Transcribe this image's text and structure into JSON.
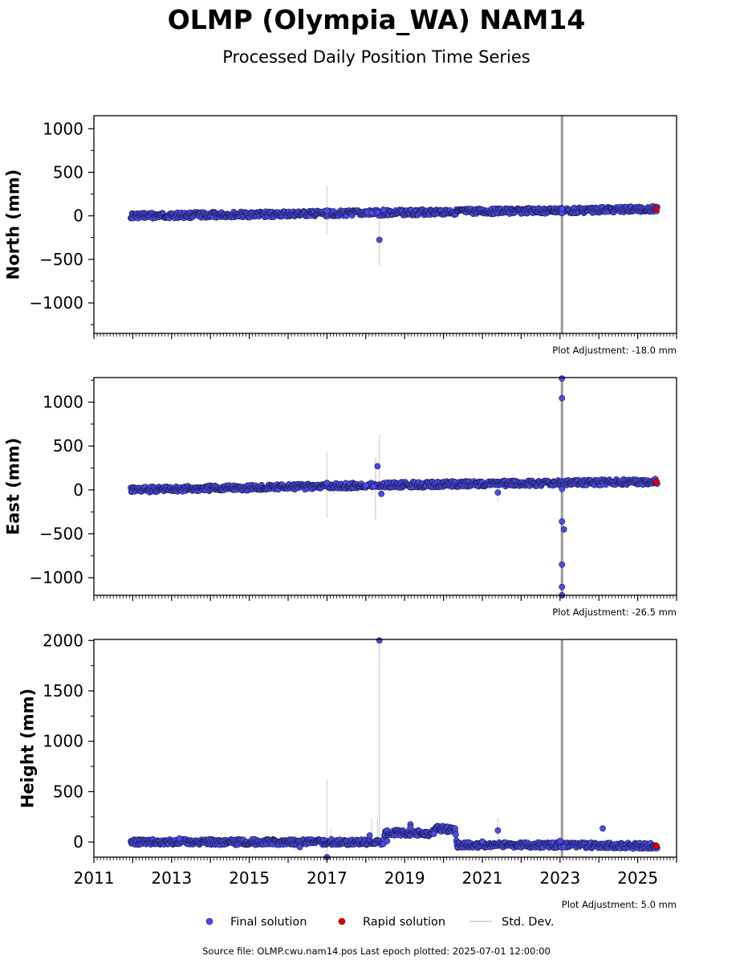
{
  "title": "OLMP (Olympia_WA) NAM14",
  "subtitle": "Processed Daily Position Time Series",
  "source_note": "Source file: OLMP.cwu.nam14.pos  Last epoch plotted: 2025-07-01 12:00:00",
  "legend": [
    {
      "label": "Final solution",
      "color": "#4b4bea",
      "kind": "marker"
    },
    {
      "label": "Rapid solution",
      "color": "#e00000",
      "kind": "marker"
    },
    {
      "label": "Std. Dev.",
      "color": "#d9d9d9",
      "kind": "line"
    }
  ],
  "colors": {
    "final": "#4b4bea",
    "rapid": "#e00000",
    "stddev": "#d9d9d9",
    "event_line": "#888888",
    "marker_edge": "#1a1a4a"
  },
  "chart_data": [
    {
      "type": "scatter",
      "ylabel": "North (mm)",
      "adjustment": "Plot Adjustment: -18.0 mm",
      "xlim": [
        2011.0,
        2026.0
      ],
      "ylim": [
        -1350,
        1150
      ],
      "yticks": [
        -1000,
        -500,
        0,
        500,
        1000
      ],
      "yticklabels": [
        "−1000",
        "−500",
        "0",
        "500",
        "1000"
      ],
      "event_x": 2023.05,
      "trend": [
        [
          2011.95,
          0
        ],
        [
          2016.0,
          20
        ],
        [
          2020.0,
          45
        ],
        [
          2023.0,
          60
        ],
        [
          2025.5,
          80
        ]
      ],
      "outliers": [
        [
          2017.0,
          60
        ],
        [
          2018.05,
          40
        ],
        [
          2018.15,
          35
        ],
        [
          2018.3,
          40
        ],
        [
          2018.35,
          -275
        ],
        [
          2018.45,
          70
        ],
        [
          2023.05,
          30
        ],
        [
          2023.05,
          80
        ]
      ],
      "errorbars": [
        [
          2017.0,
          -220,
          350
        ],
        [
          2018.3,
          -30,
          110
        ],
        [
          2018.35,
          -580,
          30
        ]
      ],
      "rapid": [
        [
          2025.48,
          80
        ]
      ]
    },
    {
      "type": "scatter",
      "ylabel": "East (mm)",
      "adjustment": "Plot Adjustment: -26.5 mm",
      "xlim": [
        2011.0,
        2026.0
      ],
      "ylim": [
        -1200,
        1280
      ],
      "yticks": [
        -1000,
        -500,
        0,
        500,
        1000
      ],
      "yticklabels": [
        "−1000",
        "−500",
        "0",
        "500",
        "1000"
      ],
      "event_x": 2023.05,
      "trend": [
        [
          2011.95,
          0
        ],
        [
          2016.0,
          35
        ],
        [
          2020.0,
          65
        ],
        [
          2023.0,
          80
        ],
        [
          2025.5,
          95
        ]
      ],
      "outliers": [
        [
          2017.0,
          80
        ],
        [
          2018.0,
          50
        ],
        [
          2018.2,
          40
        ],
        [
          2018.3,
          270
        ],
        [
          2018.4,
          -45
        ],
        [
          2021.4,
          -30
        ],
        [
          2023.05,
          1270
        ],
        [
          2023.05,
          1045
        ],
        [
          2023.05,
          10
        ],
        [
          2023.05,
          -360
        ],
        [
          2023.1,
          -450
        ],
        [
          2023.05,
          -850
        ],
        [
          2023.05,
          -1105
        ],
        [
          2023.05,
          -1200
        ]
      ],
      "errorbars": [
        [
          2017.0,
          -320,
          430
        ],
        [
          2018.25,
          -340,
          370
        ],
        [
          2018.35,
          -80,
          630
        ],
        [
          2021.4,
          -130,
          70
        ]
      ],
      "rapid": [
        [
          2025.48,
          95
        ]
      ]
    },
    {
      "type": "scatter",
      "ylabel": "Height (mm)",
      "adjustment": "Plot Adjustment: 5.0 mm",
      "xlim": [
        2011.0,
        2026.0
      ],
      "ylim": [
        -150,
        2010
      ],
      "yticks": [
        0,
        500,
        1000,
        1500,
        2000
      ],
      "yticklabels": [
        "0",
        "500",
        "1000",
        "1500",
        "2000"
      ],
      "xticks": [
        2011,
        2013,
        2015,
        2017,
        2019,
        2021,
        2023,
        2025
      ],
      "event_x": 2023.05,
      "trend": [
        [
          2011.95,
          0
        ],
        [
          2018.45,
          0
        ],
        [
          2018.5,
          95
        ],
        [
          2019.7,
          85
        ],
        [
          2019.8,
          135
        ],
        [
          2020.3,
          120
        ],
        [
          2020.35,
          -30
        ],
        [
          2023.0,
          -30
        ],
        [
          2025.5,
          -40
        ]
      ],
      "outliers": [
        [
          2013.2,
          35
        ],
        [
          2016.3,
          -50
        ],
        [
          2017.0,
          -150
        ],
        [
          2018.1,
          65
        ],
        [
          2018.35,
          2000
        ],
        [
          2018.55,
          10
        ],
        [
          2019.15,
          175
        ],
        [
          2019.15,
          145
        ],
        [
          2019.75,
          80
        ],
        [
          2021.0,
          5
        ],
        [
          2021.4,
          115
        ],
        [
          2023.0,
          10
        ],
        [
          2023.1,
          -50
        ],
        [
          2024.1,
          135
        ]
      ],
      "errorbars": [
        [
          2017.0,
          -150,
          620
        ],
        [
          2017.1,
          -60,
          130
        ],
        [
          2018.15,
          -30,
          230
        ],
        [
          2018.3,
          -20,
          230
        ],
        [
          2018.35,
          -60,
          2000
        ],
        [
          2021.4,
          0,
          240
        ]
      ],
      "rapid": [
        [
          2025.48,
          -40
        ]
      ]
    }
  ]
}
